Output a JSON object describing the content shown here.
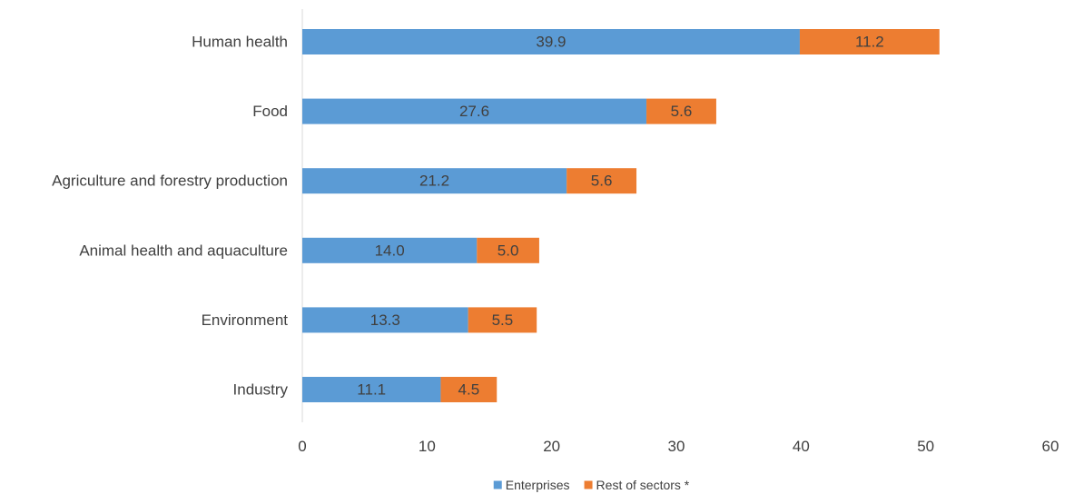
{
  "chart_data": {
    "type": "bar",
    "orientation": "horizontal",
    "stacked": true,
    "categories": [
      "Human health",
      "Food",
      "Agriculture and forestry production",
      "Animal health and aquaculture",
      "Environment",
      "Industry"
    ],
    "series": [
      {
        "name": "Enterprises",
        "color": "#5b9bd5",
        "values": [
          39.9,
          27.6,
          21.2,
          14.0,
          13.3,
          11.1
        ]
      },
      {
        "name": "Rest of sectors *",
        "color": "#ed7d31",
        "values": [
          11.2,
          5.6,
          5.6,
          5.0,
          5.5,
          4.5
        ]
      }
    ],
    "title": "",
    "xlabel": "",
    "ylabel": "",
    "xlim": [
      0,
      60
    ],
    "xticks": [
      0,
      10,
      20,
      30,
      40,
      50,
      60
    ],
    "grid": false,
    "legend_position": "bottom",
    "data_label_format": "one-decimal"
  }
}
